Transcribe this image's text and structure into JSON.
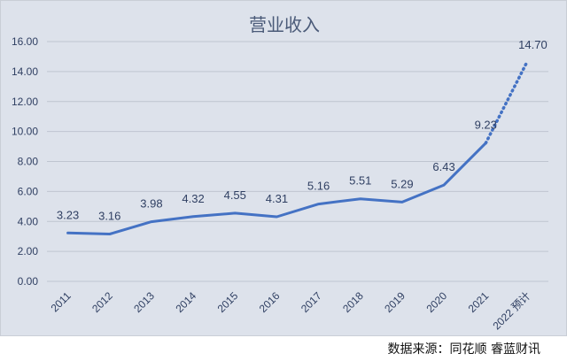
{
  "chart_data": {
    "type": "line",
    "title": "营业收入",
    "categories": [
      "2011",
      "2012",
      "2013",
      "2014",
      "2015",
      "2016",
      "2017",
      "2018",
      "2019",
      "2020",
      "2021",
      "2022 预计"
    ],
    "series": [
      {
        "values": [
          3.23,
          3.16,
          3.98,
          4.32,
          4.55,
          4.31,
          5.16,
          5.51,
          5.29,
          6.43,
          9.23,
          14.7
        ]
      }
    ],
    "data_labels": [
      "3.23",
      "3.16",
      "3.98",
      "4.32",
      "4.55",
      "4.31",
      "5.16",
      "5.51",
      "5.29",
      "6.43",
      "9.23",
      "14.70"
    ],
    "projected_from_index": 10,
    "ylim": [
      0,
      16
    ],
    "yticks": [
      "0.00",
      "2.00",
      "4.00",
      "6.00",
      "8.00",
      "10.00",
      "12.00",
      "14.00",
      "16.00"
    ],
    "grid": true,
    "colors": {
      "line": "#4472c4",
      "grid": "#bfc5d0",
      "background": "#dde2eb"
    }
  },
  "source": "数据来源：同花顺  睿蓝财讯"
}
